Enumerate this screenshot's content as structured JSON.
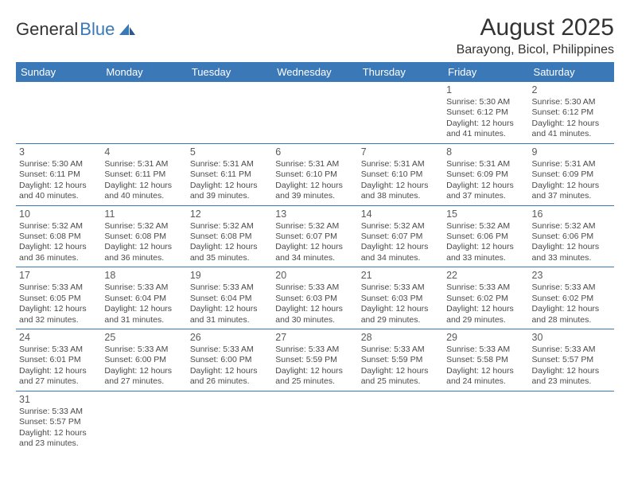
{
  "logo": {
    "part1": "General",
    "part2": "Blue"
  },
  "title": "August 2025",
  "location": "Barayong, Bicol, Philippines",
  "colors": {
    "header_bg": "#3b78b8",
    "header_text": "#ffffff",
    "shade": "#ececec",
    "rule": "#3b78b8"
  },
  "weekdays": [
    "Sunday",
    "Monday",
    "Tuesday",
    "Wednesday",
    "Thursday",
    "Friday",
    "Saturday"
  ],
  "weeks": [
    [
      null,
      null,
      null,
      null,
      null,
      {
        "n": "1",
        "sr": "Sunrise: 5:30 AM",
        "ss": "Sunset: 6:12 PM",
        "dl": "Daylight: 12 hours and 41 minutes."
      },
      {
        "n": "2",
        "sr": "Sunrise: 5:30 AM",
        "ss": "Sunset: 6:12 PM",
        "dl": "Daylight: 12 hours and 41 minutes."
      }
    ],
    [
      {
        "n": "3",
        "sr": "Sunrise: 5:30 AM",
        "ss": "Sunset: 6:11 PM",
        "dl": "Daylight: 12 hours and 40 minutes."
      },
      {
        "n": "4",
        "sr": "Sunrise: 5:31 AM",
        "ss": "Sunset: 6:11 PM",
        "dl": "Daylight: 12 hours and 40 minutes."
      },
      {
        "n": "5",
        "sr": "Sunrise: 5:31 AM",
        "ss": "Sunset: 6:11 PM",
        "dl": "Daylight: 12 hours and 39 minutes."
      },
      {
        "n": "6",
        "sr": "Sunrise: 5:31 AM",
        "ss": "Sunset: 6:10 PM",
        "dl": "Daylight: 12 hours and 39 minutes."
      },
      {
        "n": "7",
        "sr": "Sunrise: 5:31 AM",
        "ss": "Sunset: 6:10 PM",
        "dl": "Daylight: 12 hours and 38 minutes."
      },
      {
        "n": "8",
        "sr": "Sunrise: 5:31 AM",
        "ss": "Sunset: 6:09 PM",
        "dl": "Daylight: 12 hours and 37 minutes."
      },
      {
        "n": "9",
        "sr": "Sunrise: 5:31 AM",
        "ss": "Sunset: 6:09 PM",
        "dl": "Daylight: 12 hours and 37 minutes."
      }
    ],
    [
      {
        "n": "10",
        "sr": "Sunrise: 5:32 AM",
        "ss": "Sunset: 6:08 PM",
        "dl": "Daylight: 12 hours and 36 minutes."
      },
      {
        "n": "11",
        "sr": "Sunrise: 5:32 AM",
        "ss": "Sunset: 6:08 PM",
        "dl": "Daylight: 12 hours and 36 minutes."
      },
      {
        "n": "12",
        "sr": "Sunrise: 5:32 AM",
        "ss": "Sunset: 6:08 PM",
        "dl": "Daylight: 12 hours and 35 minutes."
      },
      {
        "n": "13",
        "sr": "Sunrise: 5:32 AM",
        "ss": "Sunset: 6:07 PM",
        "dl": "Daylight: 12 hours and 34 minutes."
      },
      {
        "n": "14",
        "sr": "Sunrise: 5:32 AM",
        "ss": "Sunset: 6:07 PM",
        "dl": "Daylight: 12 hours and 34 minutes."
      },
      {
        "n": "15",
        "sr": "Sunrise: 5:32 AM",
        "ss": "Sunset: 6:06 PM",
        "dl": "Daylight: 12 hours and 33 minutes."
      },
      {
        "n": "16",
        "sr": "Sunrise: 5:32 AM",
        "ss": "Sunset: 6:06 PM",
        "dl": "Daylight: 12 hours and 33 minutes."
      }
    ],
    [
      {
        "n": "17",
        "sr": "Sunrise: 5:33 AM",
        "ss": "Sunset: 6:05 PM",
        "dl": "Daylight: 12 hours and 32 minutes."
      },
      {
        "n": "18",
        "sr": "Sunrise: 5:33 AM",
        "ss": "Sunset: 6:04 PM",
        "dl": "Daylight: 12 hours and 31 minutes."
      },
      {
        "n": "19",
        "sr": "Sunrise: 5:33 AM",
        "ss": "Sunset: 6:04 PM",
        "dl": "Daylight: 12 hours and 31 minutes."
      },
      {
        "n": "20",
        "sr": "Sunrise: 5:33 AM",
        "ss": "Sunset: 6:03 PM",
        "dl": "Daylight: 12 hours and 30 minutes."
      },
      {
        "n": "21",
        "sr": "Sunrise: 5:33 AM",
        "ss": "Sunset: 6:03 PM",
        "dl": "Daylight: 12 hours and 29 minutes."
      },
      {
        "n": "22",
        "sr": "Sunrise: 5:33 AM",
        "ss": "Sunset: 6:02 PM",
        "dl": "Daylight: 12 hours and 29 minutes."
      },
      {
        "n": "23",
        "sr": "Sunrise: 5:33 AM",
        "ss": "Sunset: 6:02 PM",
        "dl": "Daylight: 12 hours and 28 minutes."
      }
    ],
    [
      {
        "n": "24",
        "sr": "Sunrise: 5:33 AM",
        "ss": "Sunset: 6:01 PM",
        "dl": "Daylight: 12 hours and 27 minutes."
      },
      {
        "n": "25",
        "sr": "Sunrise: 5:33 AM",
        "ss": "Sunset: 6:00 PM",
        "dl": "Daylight: 12 hours and 27 minutes."
      },
      {
        "n": "26",
        "sr": "Sunrise: 5:33 AM",
        "ss": "Sunset: 6:00 PM",
        "dl": "Daylight: 12 hours and 26 minutes."
      },
      {
        "n": "27",
        "sr": "Sunrise: 5:33 AM",
        "ss": "Sunset: 5:59 PM",
        "dl": "Daylight: 12 hours and 25 minutes."
      },
      {
        "n": "28",
        "sr": "Sunrise: 5:33 AM",
        "ss": "Sunset: 5:59 PM",
        "dl": "Daylight: 12 hours and 25 minutes."
      },
      {
        "n": "29",
        "sr": "Sunrise: 5:33 AM",
        "ss": "Sunset: 5:58 PM",
        "dl": "Daylight: 12 hours and 24 minutes."
      },
      {
        "n": "30",
        "sr": "Sunrise: 5:33 AM",
        "ss": "Sunset: 5:57 PM",
        "dl": "Daylight: 12 hours and 23 minutes."
      }
    ],
    [
      {
        "n": "31",
        "sr": "Sunrise: 5:33 AM",
        "ss": "Sunset: 5:57 PM",
        "dl": "Daylight: 12 hours and 23 minutes."
      },
      null,
      null,
      null,
      null,
      null,
      null
    ]
  ]
}
